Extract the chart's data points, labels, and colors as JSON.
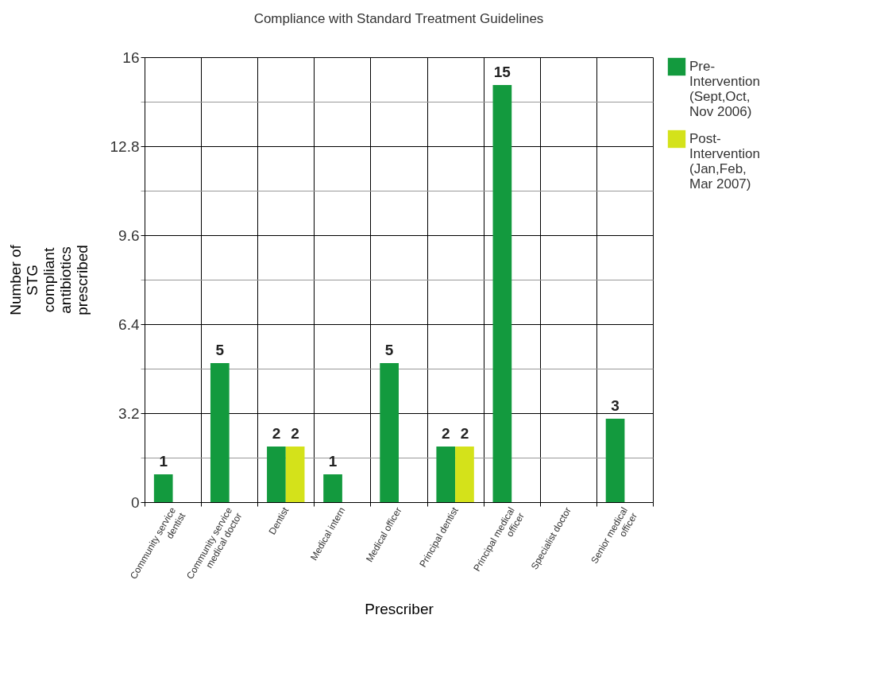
{
  "chart_data": {
    "type": "bar",
    "title": "Compliance with Standard Treatment Guidelines",
    "xlabel": "Prescriber",
    "ylabel": "Number of STG compliant antibiotics prescribed",
    "categories": [
      "Community service dentist",
      "Community service medical doctor",
      "Dentist",
      "Medical intern",
      "Medical officer",
      "Principal dentist",
      "Principal medical officer",
      "Specialist doctor",
      "Senior medical officer"
    ],
    "series": [
      {
        "name": "Pre-Intervention (Sept,Oct, Nov 2006)",
        "color": "#139a3e",
        "values": [
          1,
          5,
          2,
          1,
          5,
          2,
          15,
          null,
          3
        ]
      },
      {
        "name": "Post-Intervention (Jan,Feb, Mar 2007)",
        "color": "#d4e21a",
        "values": [
          null,
          null,
          2,
          null,
          null,
          2,
          null,
          null,
          null
        ]
      }
    ],
    "ylim": [
      0,
      16
    ],
    "yticks": [
      0,
      {
        "value": 1.6,
        "label": null
      },
      3.2,
      {
        "value": 4.8,
        "label": null
      },
      6.4,
      {
        "value": 8,
        "label": null
      },
      9.6,
      {
        "value": 11.2,
        "label": null
      },
      12.8,
      {
        "value": 14.4,
        "label": null
      },
      16
    ],
    "data_labels": true,
    "grid": true,
    "legend": "right"
  }
}
